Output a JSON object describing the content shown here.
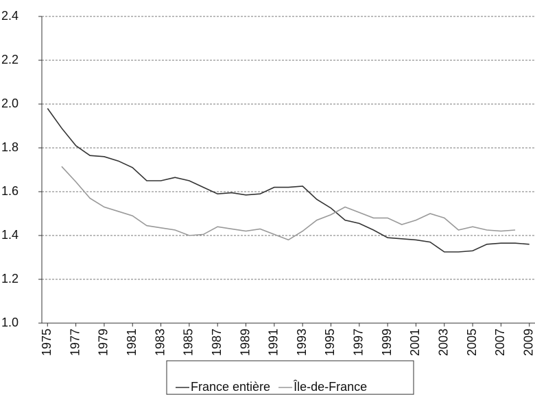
{
  "chart_data": {
    "type": "line",
    "x": [
      1975,
      1976,
      1977,
      1978,
      1979,
      1980,
      1981,
      1982,
      1983,
      1984,
      1985,
      1986,
      1987,
      1988,
      1989,
      1990,
      1991,
      1992,
      1993,
      1994,
      1995,
      1996,
      1997,
      1998,
      1999,
      2000,
      2001,
      2002,
      2003,
      2004,
      2005,
      2006,
      2007,
      2008,
      2009
    ],
    "series": [
      {
        "name": "France entière",
        "color": "#333333",
        "values": [
          1.98,
          1.89,
          1.81,
          1.765,
          1.76,
          1.74,
          1.71,
          1.65,
          1.65,
          1.665,
          1.65,
          1.62,
          1.59,
          1.595,
          1.585,
          1.59,
          1.62,
          1.62,
          1.625,
          1.565,
          1.525,
          1.47,
          1.455,
          1.425,
          1.39,
          1.385,
          1.38,
          1.37,
          1.325,
          1.325,
          1.33,
          1.36,
          1.365,
          1.365,
          1.36
        ]
      },
      {
        "name": "Île-de-France",
        "color": "#999999",
        "values": [
          null,
          1.715,
          1.645,
          1.57,
          1.53,
          1.51,
          1.49,
          1.445,
          1.435,
          1.425,
          1.4,
          1.405,
          1.44,
          1.43,
          1.42,
          1.43,
          1.405,
          1.38,
          1.42,
          1.47,
          1.495,
          1.53,
          1.505,
          1.48,
          1.48,
          1.45,
          1.47,
          1.5,
          1.48,
          1.425,
          1.44,
          1.425,
          1.42,
          1.425,
          null
        ]
      }
    ],
    "xlim": [
      1974.6,
      2009.4
    ],
    "xticks": [
      1975,
      1977,
      1979,
      1981,
      1983,
      1985,
      1987,
      1989,
      1991,
      1993,
      1995,
      1997,
      1999,
      2001,
      2003,
      2005,
      2007,
      2009
    ],
    "ylim": [
      1.0,
      2.4
    ],
    "yticks": [
      {
        "value": 1.0,
        "label": "1.0"
      },
      {
        "value": 1.2,
        "label": "1.2"
      },
      {
        "value": 1.4,
        "label": "1.4"
      },
      {
        "value": 1.6,
        "label": "1.6"
      },
      {
        "value": 1.8,
        "label": "1.8"
      },
      {
        "value": 2.0,
        "label": "2.0"
      },
      {
        "value": 2.2,
        "label": "2.2"
      },
      {
        "value": 2.4,
        "label": "2.4"
      }
    ],
    "grid": true,
    "legend": "bottom"
  }
}
